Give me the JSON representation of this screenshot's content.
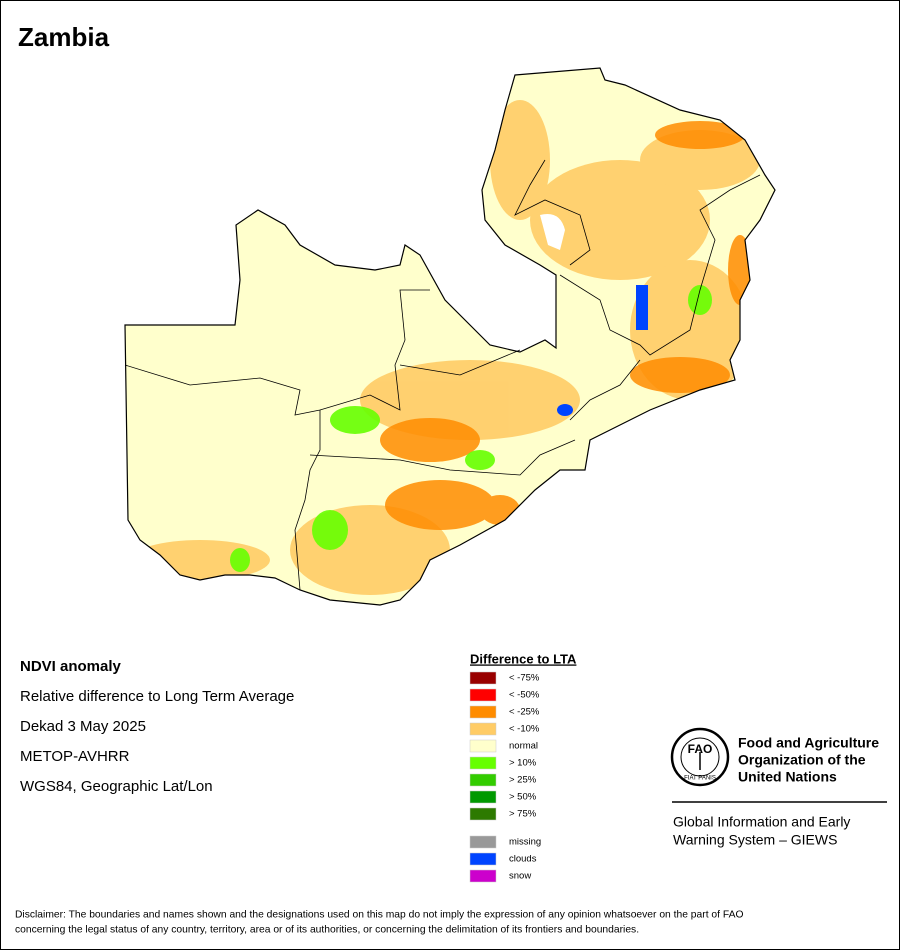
{
  "header": {
    "title": "Zambia"
  },
  "info": {
    "lines": [
      "NDVI anomaly",
      "Relative difference to Long Term Average",
      "Dekad 3 May 2025",
      "METOP-AVHRR",
      "WGS84, Geographic Lat/Lon"
    ]
  },
  "legend": {
    "title": "Difference to LTA",
    "items": [
      {
        "label": "< -75%",
        "color": "#990000"
      },
      {
        "label": "< -50%",
        "color": "#ff0000"
      },
      {
        "label": "< -25%",
        "color": "#ff8c00"
      },
      {
        "label": "< -10%",
        "color": "#ffcc66"
      },
      {
        "label": "normal",
        "color": "#ffffcc"
      },
      {
        "label": "> 10%",
        "color": "#66ff00"
      },
      {
        "label": "> 25%",
        "color": "#33cc00"
      },
      {
        "label": "> 50%",
        "color": "#009900"
      },
      {
        "label": "> 75%",
        "color": "#2d7a00"
      }
    ],
    "extra_items": [
      {
        "label": "missing",
        "color": "#999999"
      },
      {
        "label": "clouds",
        "color": "#0044ff"
      },
      {
        "label": "snow",
        "color": "#cc00cc"
      }
    ]
  },
  "logo": {
    "letters": "FAO",
    "motto": "FIAT PANIS",
    "org_lines": [
      "Food and Agriculture",
      "Organization of the",
      "United Nations"
    ],
    "system_lines": [
      "Global Information and Early",
      "Warning System – GIEWS"
    ]
  },
  "disclaimer": {
    "lines": [
      "Disclaimer: The boundaries and names shown and the designations used on this map do not imply the expression of any opinion whatsoever on the part of FAO",
      "concerning the legal status of any country, territory, area or of its authorities, or concerning the delimitation of its frontiers and boundaries."
    ]
  }
}
